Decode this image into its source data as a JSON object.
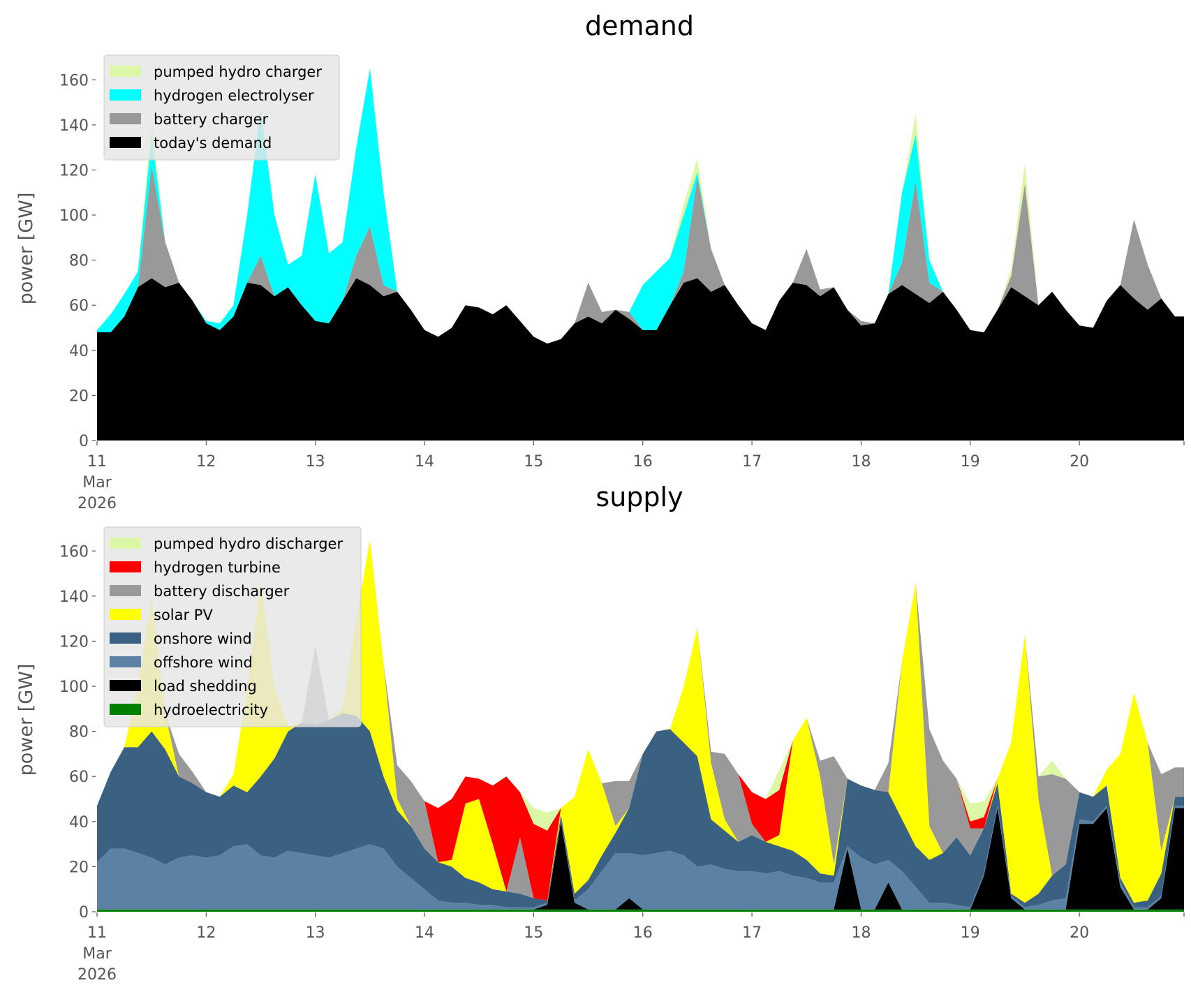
{
  "chart_data": [
    {
      "type": "area",
      "stacked": true,
      "title": "demand",
      "xlabel": "",
      "ylabel": "power [GW]",
      "ylim": [
        0,
        170
      ],
      "yticks": [
        0,
        20,
        40,
        60,
        80,
        100,
        120,
        140,
        160
      ],
      "xlim_hours": [
        0,
        239
      ],
      "time_step_hours": 3,
      "xtick_labels": [
        "11\nMar\n2026",
        "12",
        "13",
        "14",
        "15",
        "16",
        "17",
        "18",
        "19",
        "20"
      ],
      "grid": false,
      "legend_position": "top-left",
      "series": [
        {
          "name": "today's demand",
          "color": "#000000",
          "values": [
            48,
            48,
            55,
            68,
            72,
            68,
            70,
            62,
            52,
            49,
            55,
            70,
            69,
            64,
            68,
            60,
            53,
            52,
            62,
            72,
            69,
            64,
            66,
            58,
            49,
            46,
            50,
            60,
            59,
            56,
            60,
            53,
            46,
            43,
            45,
            52,
            55,
            52,
            58,
            54,
            49,
            49,
            60,
            70,
            72,
            66,
            69,
            60,
            52,
            49,
            62,
            70,
            69,
            64,
            68,
            58,
            51,
            52,
            65,
            69,
            65,
            61,
            66,
            58,
            49,
            48,
            58,
            68,
            64,
            60,
            66,
            58,
            51,
            50,
            62,
            69,
            63,
            58,
            63,
            55
          ]
        },
        {
          "name": "battery charger",
          "color": "#999999",
          "values": [
            0,
            0,
            0,
            0,
            50,
            20,
            0,
            0,
            0,
            0,
            0,
            0,
            13,
            0,
            0,
            0,
            0,
            0,
            0,
            10,
            26,
            5,
            0,
            0,
            0,
            0,
            0,
            0,
            0,
            0,
            0,
            0,
            0,
            0,
            0,
            0,
            15,
            5,
            0,
            3,
            0,
            0,
            0,
            5,
            45,
            19,
            0,
            0,
            0,
            0,
            0,
            0,
            16,
            3,
            0,
            0,
            2,
            0,
            0,
            10,
            50,
            9,
            0,
            0,
            0,
            0,
            0,
            5,
            50,
            0,
            0,
            0,
            0,
            0,
            0,
            0,
            35,
            20,
            0,
            0
          ]
        },
        {
          "name": "hydrogen electrolyser",
          "color": "#00ffff",
          "values": [
            1,
            8,
            10,
            7,
            13,
            0,
            0,
            0,
            1,
            3,
            5,
            30,
            65,
            36,
            10,
            22,
            65,
            31,
            26,
            48,
            70,
            41,
            0,
            0,
            0,
            0,
            0,
            0,
            0,
            0,
            0,
            0,
            0,
            0,
            0,
            0,
            0,
            0,
            0,
            0,
            20,
            26,
            21,
            25,
            2,
            0,
            0,
            0,
            0,
            0,
            0,
            0,
            0,
            0,
            0,
            0,
            0,
            0,
            0,
            31,
            21,
            10,
            0,
            0,
            0,
            0,
            0,
            0,
            0,
            0,
            0,
            0,
            0,
            0,
            0,
            0,
            0,
            0,
            0,
            0
          ]
        },
        {
          "name": "pumped hydro charger",
          "color": "#dcf7a5",
          "values": [
            0,
            0,
            0,
            0,
            8,
            0,
            0,
            0,
            0,
            0,
            0,
            0,
            0,
            0,
            0,
            0,
            0,
            0,
            0,
            0,
            0,
            0,
            0,
            0,
            0,
            0,
            0,
            0,
            0,
            0,
            0,
            0,
            0,
            0,
            0,
            0,
            0,
            0,
            0,
            0,
            0,
            0,
            0,
            5,
            6,
            0,
            0,
            0,
            0,
            0,
            0,
            0,
            0,
            0,
            0,
            0,
            0,
            0,
            0,
            0,
            9,
            0,
            0,
            0,
            0,
            0,
            0,
            3,
            9,
            0,
            0,
            0,
            0,
            0,
            0,
            0,
            0,
            0,
            0,
            0
          ]
        }
      ]
    },
    {
      "type": "area",
      "stacked": true,
      "title": "supply",
      "xlabel": "",
      "ylabel": "power [GW]",
      "ylim": [
        0,
        170
      ],
      "yticks": [
        0,
        20,
        40,
        60,
        80,
        100,
        120,
        140,
        160
      ],
      "xlim_hours": [
        0,
        239
      ],
      "time_step_hours": 3,
      "xtick_labels": [
        "11\nMar\n2026",
        "12",
        "13",
        "14",
        "15",
        "16",
        "17",
        "18",
        "19",
        "20"
      ],
      "grid": false,
      "legend_position": "top-left",
      "series": [
        {
          "name": "hydroelectricity",
          "color": "#008000",
          "values": [
            1,
            1,
            1,
            1,
            1,
            1,
            1,
            1,
            1,
            1,
            1,
            1,
            1,
            1,
            1,
            1,
            1,
            1,
            1,
            1,
            1,
            1,
            1,
            1,
            1,
            1,
            1,
            1,
            1,
            1,
            1,
            1,
            1,
            1,
            1,
            1,
            1,
            1,
            1,
            1,
            1,
            1,
            1,
            1,
            1,
            1,
            1,
            1,
            1,
            1,
            1,
            1,
            1,
            1,
            1,
            1,
            1,
            1,
            1,
            1,
            1,
            1,
            1,
            1,
            1,
            1,
            1,
            1,
            1,
            1,
            1,
            1,
            1,
            1,
            1,
            1,
            1,
            1,
            1,
            1
          ]
        },
        {
          "name": "load shedding",
          "color": "#000000",
          "values": [
            0,
            0,
            0,
            0,
            0,
            0,
            0,
            0,
            0,
            0,
            0,
            0,
            0,
            0,
            0,
            0,
            0,
            0,
            0,
            0,
            0,
            0,
            0,
            0,
            0,
            0,
            0,
            0,
            0,
            0,
            0,
            0,
            0,
            2,
            39,
            3,
            0,
            0,
            0,
            5,
            0,
            0,
            0,
            0,
            0,
            0,
            0,
            0,
            0,
            0,
            0,
            0,
            0,
            0,
            0,
            27,
            0,
            0,
            12,
            0,
            0,
            0,
            0,
            0,
            0,
            15,
            45,
            5,
            0,
            0,
            0,
            0,
            38,
            38,
            45,
            10,
            0,
            0,
            5,
            45
          ]
        },
        {
          "name": "offshore wind",
          "color": "#5b81a4",
          "values": [
            21,
            27,
            27,
            25,
            23,
            20,
            23,
            24,
            23,
            24,
            28,
            29,
            24,
            23,
            26,
            25,
            24,
            23,
            25,
            27,
            29,
            27,
            19,
            14,
            9,
            4,
            3,
            3,
            2,
            2,
            1,
            1,
            1,
            1,
            1,
            1,
            9,
            17,
            25,
            20,
            24,
            25,
            26,
            24,
            19,
            20,
            18,
            17,
            17,
            16,
            17,
            15,
            14,
            12,
            12,
            1,
            23,
            20,
            10,
            17,
            10,
            3,
            3,
            2,
            1,
            1,
            1,
            1,
            1,
            2,
            4,
            5,
            2,
            1,
            1,
            2,
            1,
            1,
            1,
            1
          ]
        },
        {
          "name": "onshore wind",
          "color": "#3b6182",
          "values": [
            25,
            34,
            45,
            47,
            56,
            51,
            36,
            32,
            29,
            26,
            27,
            23,
            35,
            44,
            53,
            58,
            58,
            61,
            62,
            59,
            50,
            32,
            25,
            23,
            18,
            17,
            16,
            11,
            10,
            7,
            7,
            6,
            4,
            1,
            2,
            3,
            4,
            7,
            9,
            20,
            45,
            54,
            54,
            50,
            49,
            20,
            17,
            13,
            16,
            14,
            11,
            11,
            8,
            4,
            3,
            30,
            32,
            33,
            30,
            23,
            18,
            19,
            22,
            30,
            23,
            20,
            10,
            1,
            2,
            5,
            11,
            15,
            12,
            11,
            9,
            2,
            2,
            3,
            10,
            4
          ]
        },
        {
          "name": "solar PV",
          "color": "#ffff00",
          "values": [
            0,
            0,
            0,
            27,
            60,
            16,
            0,
            0,
            0,
            0,
            5,
            45,
            87,
            32,
            2,
            0,
            0,
            0,
            2,
            43,
            85,
            50,
            5,
            0,
            0,
            0,
            3,
            33,
            37,
            20,
            0,
            0,
            0,
            0,
            3,
            43,
            58,
            32,
            3,
            0,
            0,
            0,
            0,
            25,
            57,
            25,
            5,
            0,
            0,
            0,
            5,
            49,
            63,
            43,
            5,
            0,
            0,
            0,
            0,
            70,
            117,
            15,
            0,
            0,
            0,
            0,
            2,
            67,
            119,
            42,
            0,
            0,
            0,
            0,
            7,
            55,
            93,
            70,
            10,
            0
          ]
        },
        {
          "name": "battery discharger",
          "color": "#999999",
          "values": [
            0,
            0,
            0,
            0,
            0,
            0,
            10,
            5,
            0,
            0,
            0,
            0,
            0,
            0,
            0,
            0,
            35,
            0,
            0,
            0,
            0,
            0,
            15,
            20,
            21,
            0,
            0,
            0,
            0,
            0,
            0,
            25,
            0,
            0,
            0,
            0,
            0,
            0,
            20,
            12,
            0,
            0,
            0,
            0,
            0,
            5,
            29,
            30,
            5,
            0,
            0,
            0,
            0,
            7,
            48,
            0,
            0,
            0,
            13,
            0,
            0,
            43,
            41,
            26,
            12,
            0,
            0,
            0,
            0,
            10,
            45,
            38,
            0,
            0,
            0,
            0,
            0,
            0,
            34,
            13
          ]
        },
        {
          "name": "hydrogen turbine",
          "color": "#ff0000",
          "values": [
            0,
            0,
            0,
            0,
            0,
            0,
            0,
            0,
            0,
            0,
            0,
            0,
            0,
            0,
            0,
            0,
            0,
            0,
            0,
            0,
            0,
            0,
            0,
            0,
            0,
            24,
            27,
            12,
            9,
            26,
            51,
            20,
            33,
            31,
            0,
            0,
            0,
            0,
            0,
            0,
            0,
            0,
            0,
            0,
            0,
            0,
            0,
            0,
            14,
            19,
            20,
            0,
            0,
            0,
            0,
            0,
            0,
            0,
            0,
            0,
            0,
            0,
            0,
            0,
            3,
            5,
            0,
            0,
            0,
            0,
            0,
            0,
            0,
            0,
            0,
            0,
            0,
            0,
            0,
            0
          ]
        },
        {
          "name": "pumped hydro discharger",
          "color": "#dcf7a5",
          "values": [
            0,
            0,
            0,
            0,
            0,
            0,
            0,
            0,
            0,
            0,
            0,
            0,
            0,
            0,
            0,
            0,
            0,
            0,
            0,
            0,
            0,
            0,
            0,
            0,
            0,
            0,
            0,
            0,
            0,
            0,
            0,
            0,
            7,
            8,
            0,
            0,
            0,
            0,
            0,
            0,
            0,
            0,
            0,
            0,
            0,
            0,
            0,
            0,
            0,
            0,
            9,
            0,
            0,
            0,
            0,
            0,
            0,
            0,
            0,
            0,
            0,
            0,
            0,
            0,
            8,
            7,
            0,
            0,
            0,
            0,
            6,
            0,
            0,
            0,
            0,
            0,
            0,
            0,
            0,
            0
          ]
        }
      ]
    }
  ]
}
